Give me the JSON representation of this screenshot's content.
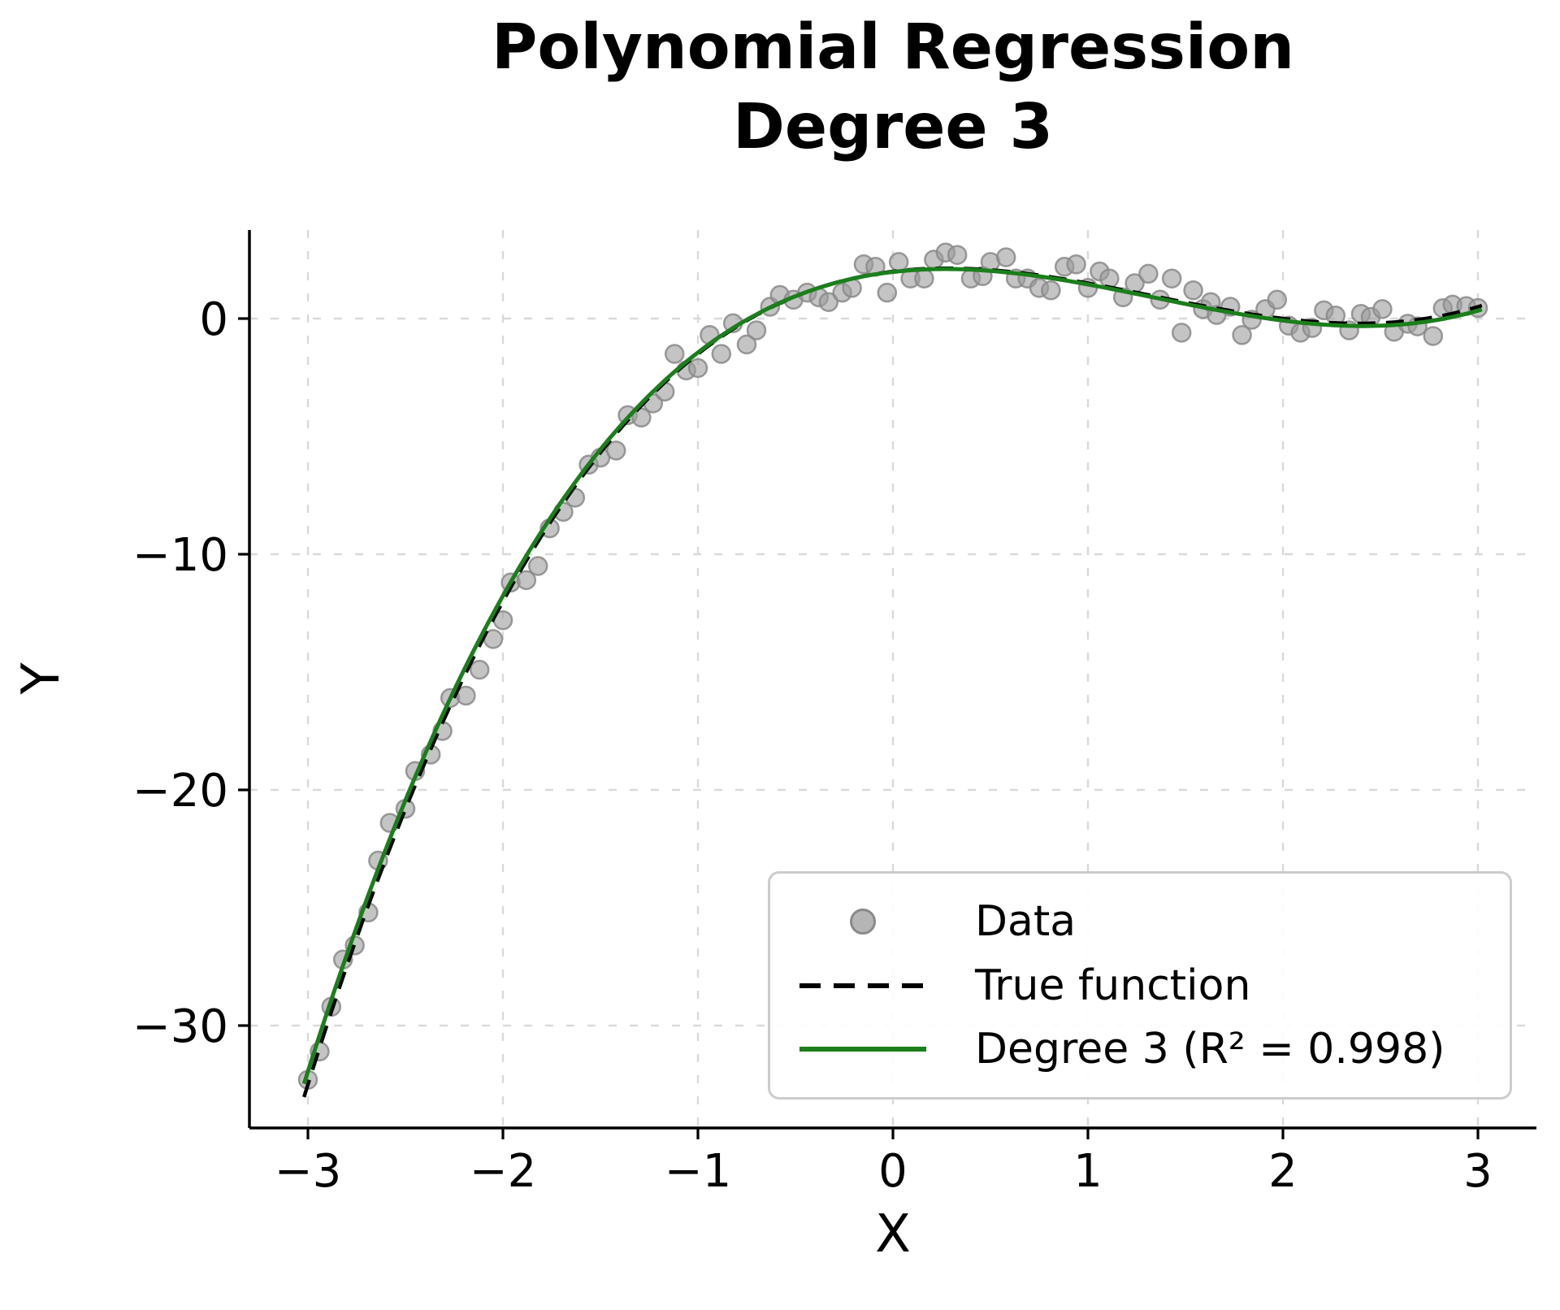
{
  "chart_data": {
    "type": "scatter",
    "title_lines": [
      "Polynomial Regression",
      "Degree 3"
    ],
    "xlabel": "X",
    "ylabel": "Y",
    "grid": true,
    "x_axis": {
      "range": [
        -3.3,
        3.3
      ],
      "ticks": [
        {
          "value": -3,
          "label": "−3"
        },
        {
          "value": -2,
          "label": "−2"
        },
        {
          "value": -1,
          "label": "−1"
        },
        {
          "value": 0,
          "label": "0"
        },
        {
          "value": 1,
          "label": "1"
        },
        {
          "value": 2,
          "label": "2"
        },
        {
          "value": 3,
          "label": "3"
        }
      ]
    },
    "y_axis": {
      "range": [
        -34.3,
        3.8
      ],
      "ticks": [
        {
          "value": 0,
          "label": "0"
        },
        {
          "value": -10,
          "label": "−10"
        },
        {
          "value": -20,
          "label": "−20"
        },
        {
          "value": -30,
          "label": "−30"
        }
      ]
    },
    "colors": {
      "scatter_fill": "#9c9c9c",
      "scatter_edge": "#8a8a8a",
      "true_function": "#000000",
      "fit_line": "#1b7f1b",
      "grid": "#d9d9d9",
      "spine": "#000000"
    },
    "legend": {
      "position": "lower right",
      "entries": [
        {
          "label": "Data",
          "marker": "circle",
          "color": "#9c9c9c"
        },
        {
          "label": "True function",
          "marker": "dashed-line",
          "color": "#000000"
        },
        {
          "label": "Degree 3 (R² = 0.998)",
          "marker": "solid-line",
          "color": "#1b7f1b"
        }
      ]
    },
    "r_squared": 0.998,
    "series": [
      {
        "name": "Data",
        "type": "scatter",
        "points": [
          [
            -3.0,
            -32.3
          ],
          [
            -2.94,
            -31.1
          ],
          [
            -2.88,
            -29.2
          ],
          [
            -2.82,
            -27.2
          ],
          [
            -2.76,
            -26.6
          ],
          [
            -2.69,
            -25.2
          ],
          [
            -2.64,
            -23.0
          ],
          [
            -2.58,
            -21.4
          ],
          [
            -2.5,
            -20.8
          ],
          [
            -2.45,
            -19.2
          ],
          [
            -2.37,
            -18.5
          ],
          [
            -2.31,
            -17.5
          ],
          [
            -2.27,
            -16.1
          ],
          [
            -2.19,
            -16.0
          ],
          [
            -2.12,
            -14.9
          ],
          [
            -2.05,
            -13.6
          ],
          [
            -2.0,
            -12.8
          ],
          [
            -1.96,
            -11.2
          ],
          [
            -1.88,
            -11.1
          ],
          [
            -1.82,
            -10.5
          ],
          [
            -1.76,
            -8.9
          ],
          [
            -1.69,
            -8.2
          ],
          [
            -1.63,
            -7.6
          ],
          [
            -1.56,
            -6.2
          ],
          [
            -1.5,
            -5.9
          ],
          [
            -1.42,
            -5.6
          ],
          [
            -1.36,
            -4.1
          ],
          [
            -1.29,
            -4.2
          ],
          [
            -1.23,
            -3.6
          ],
          [
            -1.17,
            -3.1
          ],
          [
            -1.12,
            -1.5
          ],
          [
            -1.06,
            -2.2
          ],
          [
            -1.0,
            -2.1
          ],
          [
            -0.94,
            -0.7
          ],
          [
            -0.88,
            -1.5
          ],
          [
            -0.82,
            -0.2
          ],
          [
            -0.75,
            -1.1
          ],
          [
            -0.7,
            -0.5
          ],
          [
            -0.63,
            0.5
          ],
          [
            -0.58,
            1.0
          ],
          [
            -0.51,
            0.8
          ],
          [
            -0.44,
            1.1
          ],
          [
            -0.38,
            0.9
          ],
          [
            -0.33,
            0.7
          ],
          [
            -0.26,
            1.1
          ],
          [
            -0.21,
            1.3
          ],
          [
            -0.15,
            2.3
          ],
          [
            -0.09,
            2.2
          ],
          [
            -0.03,
            1.1
          ],
          [
            0.03,
            2.4
          ],
          [
            0.09,
            1.7
          ],
          [
            0.16,
            1.7
          ],
          [
            0.21,
            2.5
          ],
          [
            0.27,
            2.8
          ],
          [
            0.33,
            2.7
          ],
          [
            0.4,
            1.7
          ],
          [
            0.46,
            1.8
          ],
          [
            0.5,
            2.4
          ],
          [
            0.58,
            2.6
          ],
          [
            0.63,
            1.7
          ],
          [
            0.69,
            1.7
          ],
          [
            0.75,
            1.3
          ],
          [
            0.81,
            1.2
          ],
          [
            0.88,
            2.2
          ],
          [
            0.94,
            2.3
          ],
          [
            1.0,
            1.3
          ],
          [
            1.06,
            2.0
          ],
          [
            1.11,
            1.7
          ],
          [
            1.18,
            0.9
          ],
          [
            1.24,
            1.5
          ],
          [
            1.31,
            1.9
          ],
          [
            1.37,
            0.8
          ],
          [
            1.43,
            1.7
          ],
          [
            1.48,
            -0.6
          ],
          [
            1.54,
            1.2
          ],
          [
            1.59,
            0.4
          ],
          [
            1.63,
            0.7
          ],
          [
            1.66,
            0.15
          ],
          [
            1.73,
            0.5
          ],
          [
            1.79,
            -0.7
          ],
          [
            1.84,
            -0.05
          ],
          [
            1.91,
            0.4
          ],
          [
            1.97,
            0.8
          ],
          [
            2.03,
            -0.3
          ],
          [
            2.09,
            -0.6
          ],
          [
            2.15,
            -0.4
          ],
          [
            2.21,
            0.35
          ],
          [
            2.27,
            0.13
          ],
          [
            2.34,
            -0.5
          ],
          [
            2.4,
            0.2
          ],
          [
            2.45,
            0.07
          ],
          [
            2.51,
            0.4
          ],
          [
            2.57,
            -0.56
          ],
          [
            2.64,
            -0.22
          ],
          [
            2.69,
            -0.33
          ],
          [
            2.77,
            -0.74
          ],
          [
            2.82,
            0.44
          ],
          [
            2.87,
            0.59
          ],
          [
            2.94,
            0.53
          ],
          [
            3.0,
            0.45
          ]
        ]
      },
      {
        "name": "True function",
        "type": "line",
        "style": "dashed",
        "poly_coeffs": [
          0.5,
          -2.0,
          1.0,
          2.0
        ],
        "x_domain": [
          -3.02,
          3.02
        ]
      },
      {
        "name": "Degree 3 (R² = 0.998)",
        "type": "line",
        "style": "solid",
        "poly_coeffs": [
          0.492,
          -1.976,
          0.952,
          1.98
        ],
        "x_domain": [
          -3.02,
          3.02
        ]
      }
    ]
  }
}
